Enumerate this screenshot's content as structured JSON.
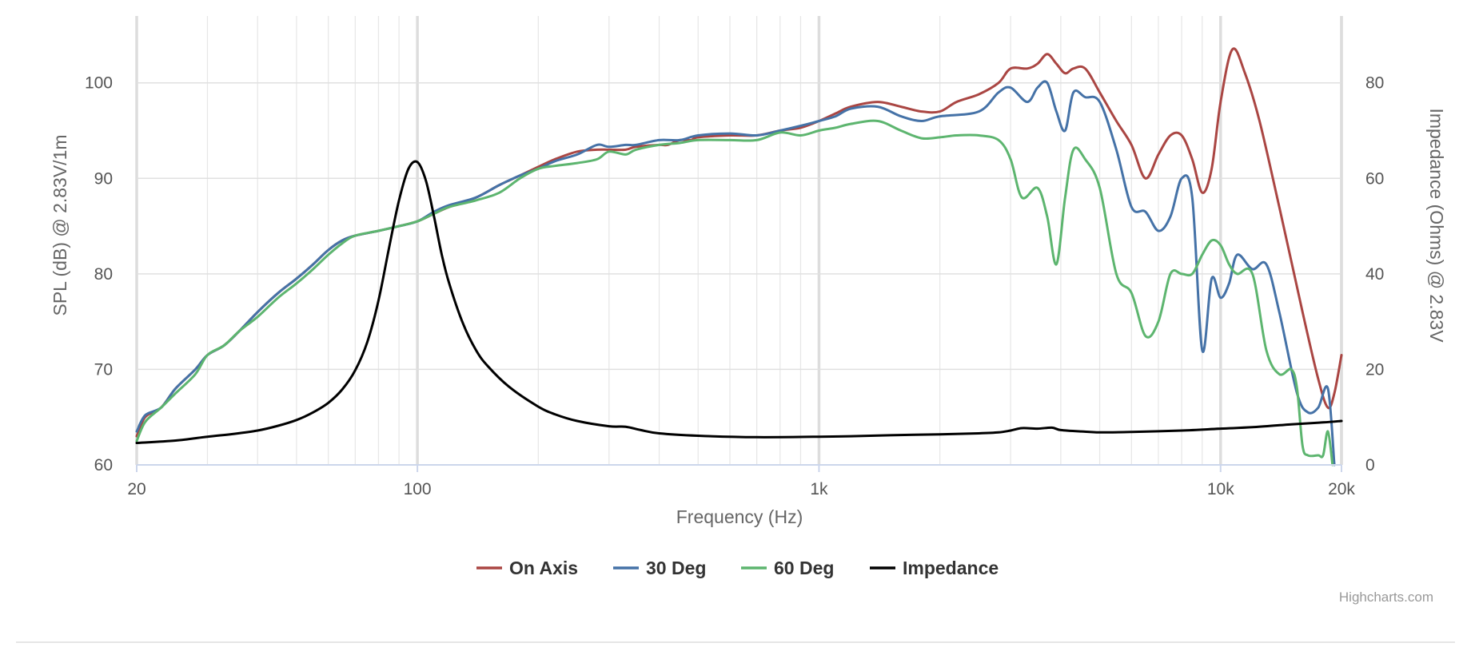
{
  "chart_data": {
    "type": "line",
    "xlabel": "Frequency (Hz)",
    "ylabel": "SPL (dB) @ 2.83V/1m",
    "y2label": "Impedance (Ohms) @ 2.83V",
    "xscale": "log",
    "xlim": [
      20,
      20000
    ],
    "ylim": [
      60,
      107
    ],
    "y2lim": [
      0,
      94
    ],
    "x_ticks": [
      20,
      100,
      1000,
      10000,
      20000
    ],
    "x_tick_labels": [
      "20",
      "100",
      "1k",
      "10k",
      "20k"
    ],
    "y_ticks": [
      60,
      70,
      80,
      90,
      100
    ],
    "y_tick_labels": [
      "60",
      "70",
      "80",
      "90",
      "100"
    ],
    "y2_ticks": [
      0,
      20,
      40,
      60,
      80
    ],
    "y2_tick_labels": [
      "0",
      "20",
      "40",
      "60",
      "80"
    ],
    "legend_position": "bottom-center",
    "credits": "Highcharts.com",
    "series": [
      {
        "name": "On Axis",
        "color": "#aa4643",
        "axis": "left",
        "points": [
          [
            20,
            63
          ],
          [
            21,
            65
          ],
          [
            23,
            66
          ],
          [
            25,
            68
          ],
          [
            28,
            70
          ],
          [
            30,
            71.5
          ],
          [
            33,
            72.5
          ],
          [
            36,
            74
          ],
          [
            40,
            76
          ],
          [
            45,
            78
          ],
          [
            50,
            79.5
          ],
          [
            55,
            81
          ],
          [
            60,
            82.5
          ],
          [
            65,
            83.5
          ],
          [
            70,
            84
          ],
          [
            80,
            84.5
          ],
          [
            90,
            85
          ],
          [
            100,
            85.5
          ],
          [
            110,
            86.3
          ],
          [
            120,
            87
          ],
          [
            140,
            88
          ],
          [
            160,
            89.3
          ],
          [
            180,
            90.3
          ],
          [
            200,
            91.2
          ],
          [
            220,
            92
          ],
          [
            250,
            92.8
          ],
          [
            280,
            93
          ],
          [
            300,
            93
          ],
          [
            330,
            93
          ],
          [
            350,
            93.3
          ],
          [
            400,
            93.5
          ],
          [
            420,
            93.5
          ],
          [
            450,
            94
          ],
          [
            480,
            94
          ],
          [
            500,
            94.3
          ],
          [
            600,
            94.5
          ],
          [
            700,
            94.5
          ],
          [
            800,
            95
          ],
          [
            900,
            95.3
          ],
          [
            1000,
            96
          ],
          [
            1100,
            96.8
          ],
          [
            1200,
            97.5
          ],
          [
            1400,
            98
          ],
          [
            1600,
            97.5
          ],
          [
            1800,
            97
          ],
          [
            2000,
            97
          ],
          [
            2200,
            98
          ],
          [
            2500,
            98.8
          ],
          [
            2800,
            100
          ],
          [
            3000,
            101.5
          ],
          [
            3300,
            101.5
          ],
          [
            3500,
            102
          ],
          [
            3700,
            103
          ],
          [
            3900,
            102
          ],
          [
            4100,
            101
          ],
          [
            4300,
            101.5
          ],
          [
            4600,
            101.5
          ],
          [
            5000,
            99
          ],
          [
            5500,
            96
          ],
          [
            6000,
            93.5
          ],
          [
            6500,
            90
          ],
          [
            7000,
            92.5
          ],
          [
            7500,
            94.5
          ],
          [
            8000,
            94.5
          ],
          [
            8500,
            92
          ],
          [
            9000,
            88.5
          ],
          [
            9500,
            91
          ],
          [
            10000,
            98
          ],
          [
            10700,
            103.5
          ],
          [
            11500,
            101
          ],
          [
            12500,
            96
          ],
          [
            14000,
            87
          ],
          [
            16000,
            76
          ],
          [
            17500,
            69
          ],
          [
            18500,
            66
          ],
          [
            19200,
            67.5
          ],
          [
            20000,
            71.5
          ]
        ]
      },
      {
        "name": "30 Deg",
        "color": "#4572a7",
        "axis": "left",
        "points": [
          [
            20,
            63.5
          ],
          [
            21,
            65.2
          ],
          [
            23,
            66
          ],
          [
            25,
            68
          ],
          [
            28,
            70
          ],
          [
            30,
            71.5
          ],
          [
            33,
            72.5
          ],
          [
            36,
            74
          ],
          [
            40,
            76
          ],
          [
            45,
            78
          ],
          [
            50,
            79.5
          ],
          [
            55,
            81
          ],
          [
            60,
            82.5
          ],
          [
            65,
            83.5
          ],
          [
            70,
            84
          ],
          [
            80,
            84.5
          ],
          [
            90,
            85
          ],
          [
            100,
            85.5
          ],
          [
            110,
            86.5
          ],
          [
            120,
            87.2
          ],
          [
            140,
            88
          ],
          [
            160,
            89.3
          ],
          [
            180,
            90.3
          ],
          [
            200,
            91
          ],
          [
            220,
            91.8
          ],
          [
            250,
            92.5
          ],
          [
            280,
            93.5
          ],
          [
            300,
            93.3
          ],
          [
            330,
            93.5
          ],
          [
            350,
            93.5
          ],
          [
            400,
            94
          ],
          [
            450,
            94
          ],
          [
            500,
            94.5
          ],
          [
            600,
            94.7
          ],
          [
            700,
            94.5
          ],
          [
            800,
            95
          ],
          [
            900,
            95.5
          ],
          [
            1000,
            96
          ],
          [
            1100,
            96.5
          ],
          [
            1200,
            97.3
          ],
          [
            1400,
            97.5
          ],
          [
            1600,
            96.5
          ],
          [
            1800,
            96
          ],
          [
            2000,
            96.5
          ],
          [
            2500,
            97
          ],
          [
            2800,
            99
          ],
          [
            3000,
            99.5
          ],
          [
            3300,
            98
          ],
          [
            3500,
            99.5
          ],
          [
            3700,
            100
          ],
          [
            3900,
            97
          ],
          [
            4100,
            95
          ],
          [
            4300,
            99
          ],
          [
            4600,
            98.5
          ],
          [
            5000,
            98
          ],
          [
            5500,
            93
          ],
          [
            6000,
            87
          ],
          [
            6500,
            86.5
          ],
          [
            7000,
            84.5
          ],
          [
            7500,
            86
          ],
          [
            8000,
            90
          ],
          [
            8500,
            88
          ],
          [
            9000,
            72
          ],
          [
            9500,
            79.5
          ],
          [
            10000,
            77.5
          ],
          [
            10500,
            79
          ],
          [
            11000,
            82
          ],
          [
            12000,
            80.5
          ],
          [
            13000,
            81
          ],
          [
            14000,
            76
          ],
          [
            15500,
            67.5
          ],
          [
            16500,
            65.5
          ],
          [
            17500,
            66
          ],
          [
            18500,
            68
          ],
          [
            19200,
            60
          ]
        ]
      },
      {
        "name": "60 Deg",
        "color": "#5db56f",
        "axis": "left",
        "points": [
          [
            20,
            62.5
          ],
          [
            21,
            64.5
          ],
          [
            23,
            66
          ],
          [
            25,
            67.5
          ],
          [
            28,
            69.5
          ],
          [
            30,
            71.5
          ],
          [
            33,
            72.5
          ],
          [
            36,
            74
          ],
          [
            40,
            75.5
          ],
          [
            45,
            77.5
          ],
          [
            50,
            79
          ],
          [
            55,
            80.5
          ],
          [
            60,
            82
          ],
          [
            65,
            83.2
          ],
          [
            70,
            84
          ],
          [
            80,
            84.5
          ],
          [
            90,
            85
          ],
          [
            100,
            85.5
          ],
          [
            110,
            86.3
          ],
          [
            120,
            87
          ],
          [
            140,
            87.7
          ],
          [
            160,
            88.5
          ],
          [
            180,
            90
          ],
          [
            200,
            91
          ],
          [
            220,
            91.3
          ],
          [
            250,
            91.6
          ],
          [
            280,
            92
          ],
          [
            300,
            92.8
          ],
          [
            330,
            92.5
          ],
          [
            350,
            93
          ],
          [
            400,
            93.5
          ],
          [
            450,
            93.7
          ],
          [
            500,
            94
          ],
          [
            600,
            94
          ],
          [
            700,
            94
          ],
          [
            800,
            94.8
          ],
          [
            900,
            94.5
          ],
          [
            1000,
            95
          ],
          [
            1100,
            95.3
          ],
          [
            1200,
            95.7
          ],
          [
            1400,
            96
          ],
          [
            1600,
            95
          ],
          [
            1800,
            94.2
          ],
          [
            2000,
            94.3
          ],
          [
            2200,
            94.5
          ],
          [
            2500,
            94.5
          ],
          [
            2800,
            94
          ],
          [
            3000,
            92
          ],
          [
            3200,
            88
          ],
          [
            3500,
            89
          ],
          [
            3700,
            86
          ],
          [
            3900,
            81
          ],
          [
            4100,
            88
          ],
          [
            4300,
            93
          ],
          [
            4600,
            92
          ],
          [
            5000,
            89
          ],
          [
            5500,
            80
          ],
          [
            6000,
            78
          ],
          [
            6500,
            73.5
          ],
          [
            7000,
            75
          ],
          [
            7500,
            80
          ],
          [
            8000,
            80
          ],
          [
            8500,
            80
          ],
          [
            9000,
            82
          ],
          [
            9500,
            83.5
          ],
          [
            10000,
            83
          ],
          [
            10500,
            81
          ],
          [
            11000,
            80
          ],
          [
            12000,
            80
          ],
          [
            13000,
            72
          ],
          [
            14000,
            69.5
          ],
          [
            15000,
            70
          ],
          [
            15500,
            68
          ],
          [
            16000,
            62
          ],
          [
            16500,
            61
          ],
          [
            17500,
            61
          ],
          [
            18000,
            61
          ],
          [
            18500,
            63.5
          ],
          [
            19000,
            60
          ]
        ]
      },
      {
        "name": "Impedance",
        "color": "#000000",
        "axis": "right",
        "points": [
          [
            20,
            4.6
          ],
          [
            25,
            5.1
          ],
          [
            30,
            5.9
          ],
          [
            35,
            6.5
          ],
          [
            40,
            7.2
          ],
          [
            45,
            8.2
          ],
          [
            50,
            9.4
          ],
          [
            55,
            11
          ],
          [
            60,
            13
          ],
          [
            65,
            15.8
          ],
          [
            70,
            19.8
          ],
          [
            75,
            25.7
          ],
          [
            80,
            34.4
          ],
          [
            85,
            45.5
          ],
          [
            90,
            55.4
          ],
          [
            95,
            62
          ],
          [
            100,
            63.4
          ],
          [
            105,
            59.5
          ],
          [
            110,
            52
          ],
          [
            115,
            44
          ],
          [
            120,
            38
          ],
          [
            130,
            29.5
          ],
          [
            140,
            24
          ],
          [
            150,
            20.6
          ],
          [
            170,
            16.2
          ],
          [
            200,
            12.2
          ],
          [
            220,
            10.6
          ],
          [
            250,
            9.2
          ],
          [
            300,
            8.1
          ],
          [
            330,
            8
          ],
          [
            360,
            7.3
          ],
          [
            400,
            6.6
          ],
          [
            500,
            6.1
          ],
          [
            700,
            5.8
          ],
          [
            1000,
            5.9
          ],
          [
            1200,
            6
          ],
          [
            1500,
            6.2
          ],
          [
            2000,
            6.4
          ],
          [
            2500,
            6.6
          ],
          [
            2800,
            6.8
          ],
          [
            3000,
            7.2
          ],
          [
            3200,
            7.7
          ],
          [
            3500,
            7.6
          ],
          [
            3800,
            7.8
          ],
          [
            4000,
            7.3
          ],
          [
            4500,
            7
          ],
          [
            5000,
            6.8
          ],
          [
            6000,
            6.9
          ],
          [
            8000,
            7.2
          ],
          [
            10000,
            7.6
          ],
          [
            12000,
            7.9
          ],
          [
            15000,
            8.5
          ],
          [
            18000,
            8.9
          ],
          [
            20000,
            9.2
          ]
        ]
      }
    ]
  }
}
